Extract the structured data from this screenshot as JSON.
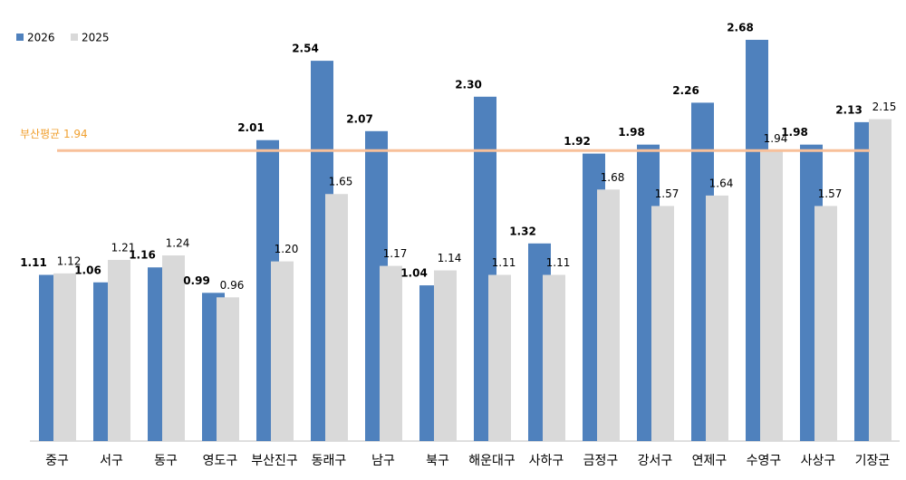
{
  "chart_data": {
    "type": "bar",
    "categories": [
      "중구",
      "서구",
      "동구",
      "영도구",
      "부산진구",
      "동래구",
      "남구",
      "북구",
      "해운대구",
      "사하구",
      "금정구",
      "강서구",
      "연제구",
      "수영구",
      "사상구",
      "기장군"
    ],
    "series": [
      {
        "name": "2026",
        "color": "#4f81bd",
        "values": [
          1.11,
          1.06,
          1.16,
          0.99,
          2.01,
          2.54,
          2.07,
          1.04,
          2.3,
          1.32,
          1.92,
          1.98,
          2.26,
          2.68,
          1.98,
          2.13
        ],
        "value_labels": [
          "1.11",
          "1.06",
          "1.16",
          "0.99",
          "2.01",
          "2.54",
          "2.07",
          "1.04",
          "2.30",
          "1.32",
          "1.92",
          "1.98",
          "2.26",
          "2.68",
          "1.98",
          "2.13"
        ]
      },
      {
        "name": "2025",
        "color": "#d9d9d9",
        "values": [
          1.12,
          1.21,
          1.24,
          0.96,
          1.2,
          1.65,
          1.17,
          1.14,
          1.11,
          1.11,
          1.68,
          1.57,
          1.64,
          1.94,
          1.57,
          2.15
        ],
        "value_labels": [
          "1.12",
          "1.21",
          "1.24",
          "0.96",
          "1.20",
          "1.65",
          "1.17",
          "1.14",
          "1.11",
          "1.11",
          "1.68",
          "1.57",
          "1.64",
          "1.94",
          "1.57",
          "2.15"
        ]
      }
    ],
    "reference_line": {
      "label": "부산평균 1.94",
      "value": 1.94,
      "color": "#f8c09a"
    },
    "ylim": [
      0,
      2.9
    ],
    "legend": "top-left"
  }
}
